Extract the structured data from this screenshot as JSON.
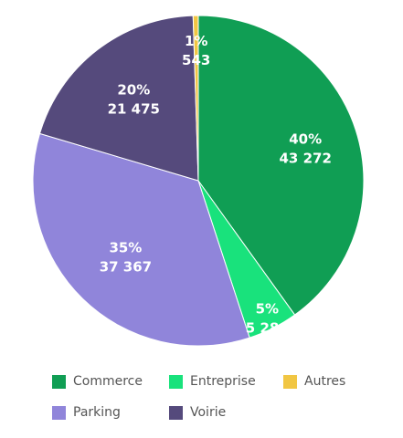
{
  "chart_data": {
    "type": "pie",
    "start_angle_deg": 0,
    "direction": "clockwise",
    "slices": [
      {
        "name": "Commerce",
        "percent_label": "40%",
        "value_label": "43 272",
        "value": 43272,
        "color": "#109E54"
      },
      {
        "name": "Entreprise",
        "percent_label": "5%",
        "value_label": "5 280",
        "value": 5280,
        "color": "#19E27C"
      },
      {
        "name": "Parking",
        "percent_label": "35%",
        "value_label": "37 367",
        "value": 37367,
        "color": "#9085DA"
      },
      {
        "name": "Voirie",
        "percent_label": "20%",
        "value_label": "21 475",
        "value": 21475,
        "color": "#554A7C"
      },
      {
        "name": "Autres",
        "percent_label": "1%",
        "value_label": "543",
        "value": 543,
        "color": "#F1C643"
      }
    ],
    "legend": {
      "placement": "bottom",
      "items": [
        "Commerce",
        "Entreprise",
        "Autres",
        "Parking",
        "Voirie"
      ]
    }
  }
}
